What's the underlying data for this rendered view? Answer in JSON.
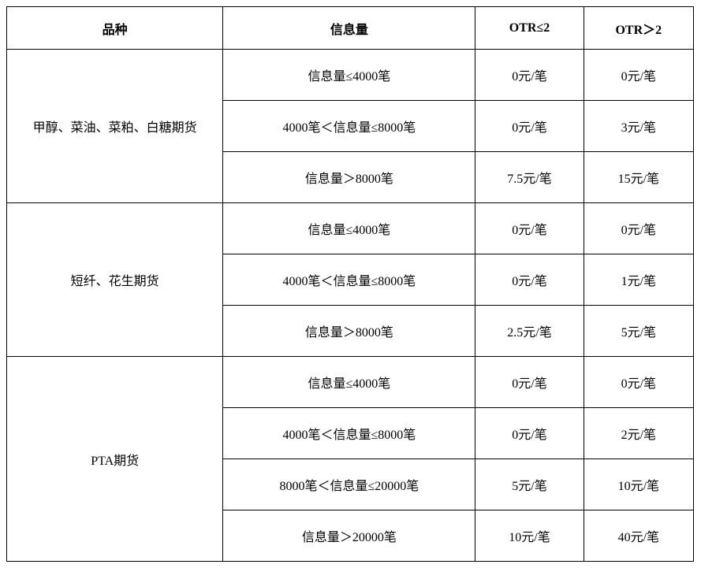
{
  "headers": {
    "variety": "品种",
    "info_volume": "信息量",
    "otr_le_2": "OTR≤2",
    "otr_gt_2": "OTR＞2"
  },
  "groups": [
    {
      "label": "甲醇、菜油、菜粕、白糖期货",
      "rows": [
        {
          "range": "信息量≤4000笔",
          "otr_le_2": "0元/笔",
          "otr_gt_2": "0元/笔"
        },
        {
          "range": "4000笔＜信息量≤8000笔",
          "otr_le_2": "0元/笔",
          "otr_gt_2": "3元/笔"
        },
        {
          "range": "信息量＞8000笔",
          "otr_le_2": "7.5元/笔",
          "otr_gt_2": "15元/笔"
        }
      ]
    },
    {
      "label": "短纤、花生期货",
      "rows": [
        {
          "range": "信息量≤4000笔",
          "otr_le_2": "0元/笔",
          "otr_gt_2": "0元/笔"
        },
        {
          "range": "4000笔＜信息量≤8000笔",
          "otr_le_2": "0元/笔",
          "otr_gt_2": "1元/笔"
        },
        {
          "range": "信息量＞8000笔",
          "otr_le_2": "2.5元/笔",
          "otr_gt_2": "5元/笔"
        }
      ]
    },
    {
      "label": "PTA期货",
      "rows": [
        {
          "range": "信息量≤4000笔",
          "otr_le_2": "0元/笔",
          "otr_gt_2": "0元/笔"
        },
        {
          "range": "4000笔＜信息量≤8000笔",
          "otr_le_2": "0元/笔",
          "otr_gt_2": "2元/笔"
        },
        {
          "range": "8000笔＜信息量≤20000笔",
          "otr_le_2": "5元/笔",
          "otr_gt_2": "10元/笔"
        },
        {
          "range": "信息量＞20000笔",
          "otr_le_2": "10元/笔",
          "otr_gt_2": "40元/笔"
        }
      ]
    }
  ]
}
